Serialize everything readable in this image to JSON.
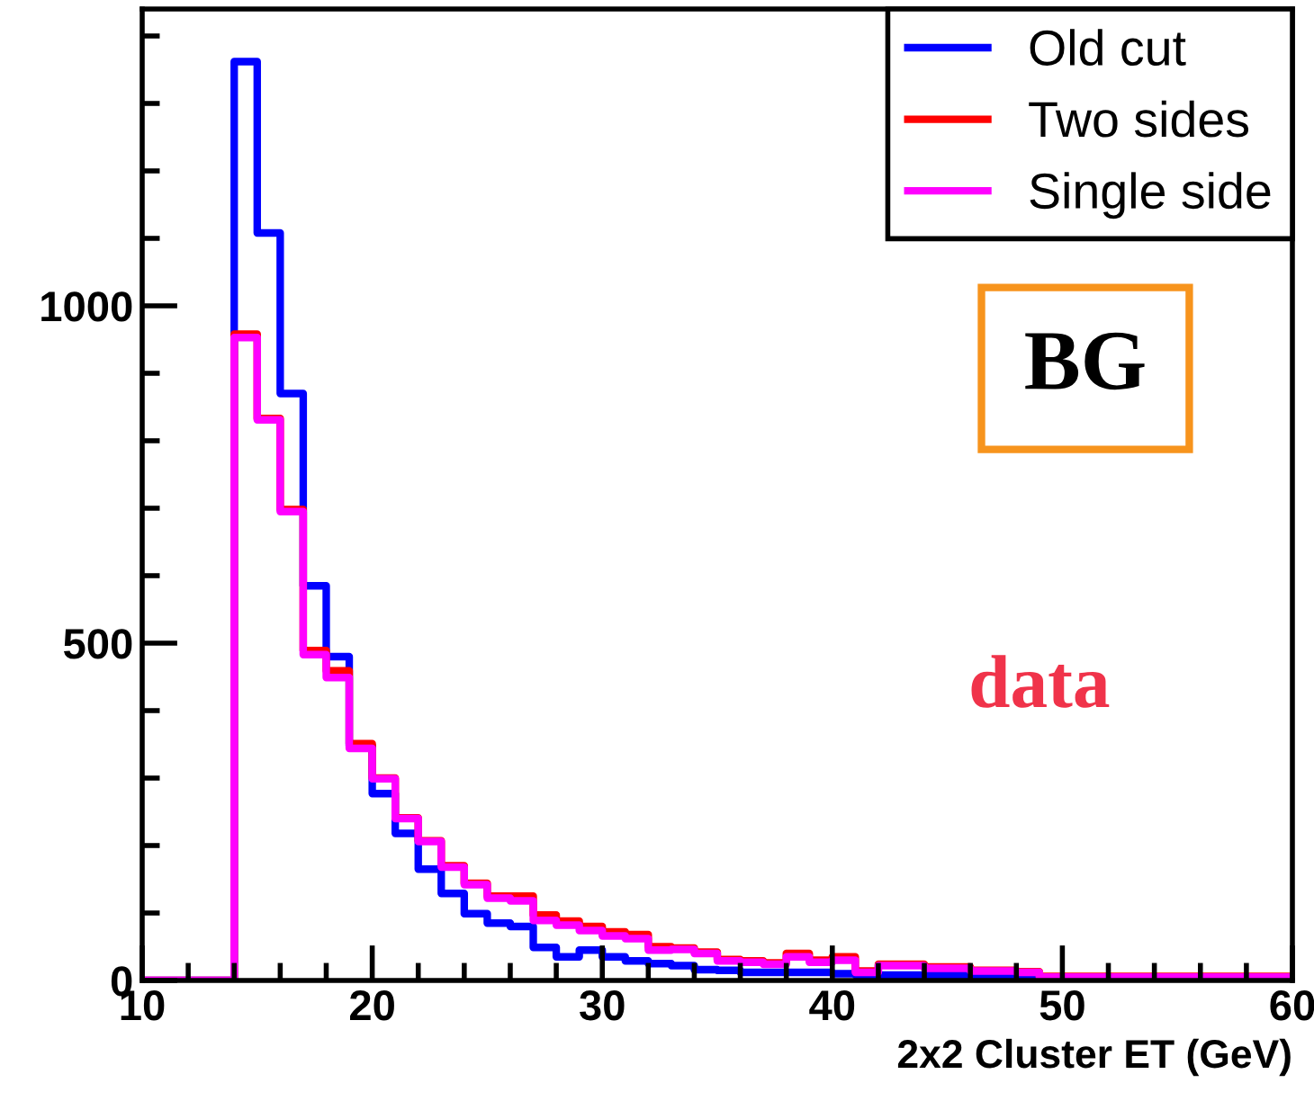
{
  "chart_data": {
    "type": "histogram",
    "xlabel": "2x2 Cluster ET (GeV)",
    "bins": [
      10,
      11,
      12,
      13,
      14,
      15,
      16,
      17,
      18,
      19,
      20,
      21,
      22,
      23,
      24,
      25,
      26,
      27,
      28,
      29,
      30,
      31,
      32,
      33,
      34,
      35,
      36,
      37,
      38,
      39,
      40,
      41,
      42,
      43,
      44,
      45,
      46,
      47,
      48,
      49,
      50,
      51,
      52,
      53,
      54,
      55,
      56,
      57,
      58,
      59,
      60
    ],
    "series": [
      {
        "name": "Old cut",
        "color": "#0000ff",
        "values": [
          0,
          0,
          0,
          0,
          1362,
          1108,
          870,
          585,
          480,
          348,
          277,
          218,
          165,
          129,
          99,
          85,
          80,
          49,
          35,
          45,
          35,
          29,
          25,
          22,
          16,
          15,
          12,
          12,
          12,
          12,
          10,
          8,
          8,
          8,
          8,
          8,
          8,
          4,
          3,
          2,
          2,
          2,
          2,
          2,
          2,
          2,
          2,
          2,
          2,
          2
        ]
      },
      {
        "name": "Two sides",
        "color": "#ff0000",
        "values": [
          0,
          0,
          0,
          0,
          958,
          833,
          698,
          489,
          459,
          351,
          300,
          241,
          207,
          170,
          144,
          125,
          125,
          97,
          88,
          80,
          72,
          68,
          50,
          48,
          42,
          31,
          29,
          26,
          40,
          30,
          35,
          14,
          24,
          24,
          20,
          20,
          15,
          15,
          13,
          6,
          6,
          6,
          6,
          6,
          6,
          6,
          6,
          6,
          6,
          6
        ]
      },
      {
        "name": "Single side",
        "color": "#ff00ff",
        "values": [
          0,
          0,
          0,
          0,
          953,
          831,
          695,
          483,
          449,
          344,
          299,
          240,
          206,
          168,
          142,
          122,
          118,
          89,
          82,
          74,
          66,
          62,
          45,
          46,
          40,
          29,
          27,
          24,
          35,
          27,
          30,
          12,
          22,
          22,
          18,
          18,
          14,
          14,
          12,
          5,
          5,
          5,
          5,
          5,
          5,
          5,
          5,
          5,
          5,
          5
        ]
      }
    ],
    "xlim": [
      10,
      60
    ],
    "xticks": [
      10,
      {
        "value": 12,
        "label": null
      },
      {
        "value": 14,
        "label": null
      },
      {
        "value": 16,
        "label": null
      },
      {
        "value": 18,
        "label": null
      },
      20,
      {
        "value": 22,
        "label": null
      },
      {
        "value": 24,
        "label": null
      },
      {
        "value": 26,
        "label": null
      },
      {
        "value": 28,
        "label": null
      },
      30,
      {
        "value": 32,
        "label": null
      },
      {
        "value": 34,
        "label": null
      },
      {
        "value": 36,
        "label": null
      },
      {
        "value": 38,
        "label": null
      },
      40,
      {
        "value": 42,
        "label": null
      },
      {
        "value": 44,
        "label": null
      },
      {
        "value": 46,
        "label": null
      },
      {
        "value": 48,
        "label": null
      },
      50,
      {
        "value": 52,
        "label": null
      },
      {
        "value": 54,
        "label": null
      },
      {
        "value": 56,
        "label": null
      },
      {
        "value": 58,
        "label": null
      },
      60
    ],
    "ylim": [
      0,
      1440
    ],
    "yticks": [
      0,
      {
        "value": 100,
        "label": null
      },
      {
        "value": 200,
        "label": null
      },
      {
        "value": 300,
        "label": null
      },
      {
        "value": 400,
        "label": null
      },
      500,
      {
        "value": 600,
        "label": null
      },
      {
        "value": 700,
        "label": null
      },
      {
        "value": 800,
        "label": null
      },
      {
        "value": 900,
        "label": null
      },
      1000,
      {
        "value": 1100,
        "label": null
      },
      {
        "value": 1200,
        "label": null
      },
      {
        "value": 1300,
        "label": null
      },
      {
        "value": 1400,
        "label": null
      }
    ],
    "annotations": [
      "BG",
      "data"
    ],
    "legend": "top right",
    "grid": false,
    "line_style": "solid"
  }
}
